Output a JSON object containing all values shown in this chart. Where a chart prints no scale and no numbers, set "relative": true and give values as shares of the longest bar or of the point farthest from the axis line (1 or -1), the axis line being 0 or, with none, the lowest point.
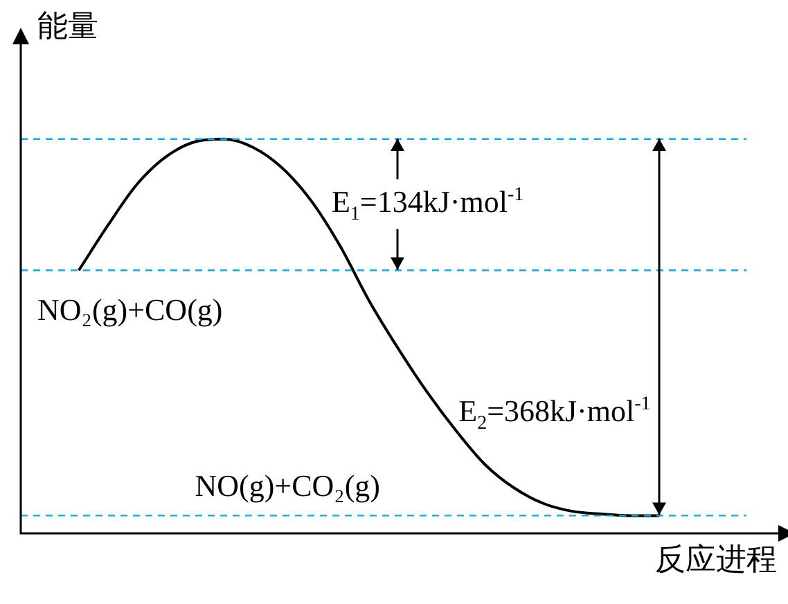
{
  "chart_data": {
    "type": "line",
    "relative": true,
    "ylabel": "能量",
    "xlabel": "反应进程",
    "color": "#000000",
    "marker": "none",
    "legend": false,
    "categories": [
      null,
      null,
      null,
      null,
      null,
      null,
      null,
      null,
      null,
      null,
      null,
      null,
      null,
      null,
      null,
      null,
      null,
      null,
      null,
      null,
      null,
      null,
      null,
      null,
      null,
      null
    ],
    "values": [
      null,
      null,
      0.667,
      0.781,
      0.885,
      0.955,
      0.993,
      1,
      0.979,
      0.927,
      0.844,
      0.729,
      0.59,
      0.469,
      0.358,
      0.26,
      0.174,
      0.115,
      0.076,
      0.056,
      0.049,
      0.045,
      0.045,
      null,
      null,
      null
    ],
    "ref_lines": [
      {
        "axis": "y",
        "value": 1,
        "color": "#00b0f0",
        "line_style": "dashed"
      },
      {
        "axis": "y",
        "value": 0.667,
        "color": "#00b0f0",
        "line_style": "dashed"
      },
      {
        "axis": "y",
        "value": 0.045,
        "color": "#00b0f0",
        "line_style": "dashed"
      }
    ],
    "annotations": [
      "E$_{1}$=134kJ·mol$^{-1}$",
      "E$_{2}$=368kJ·mol$^{-1}$",
      "NO₂(g)+CO(g)",
      "NO(g)+CO₂(g)"
    ]
  }
}
